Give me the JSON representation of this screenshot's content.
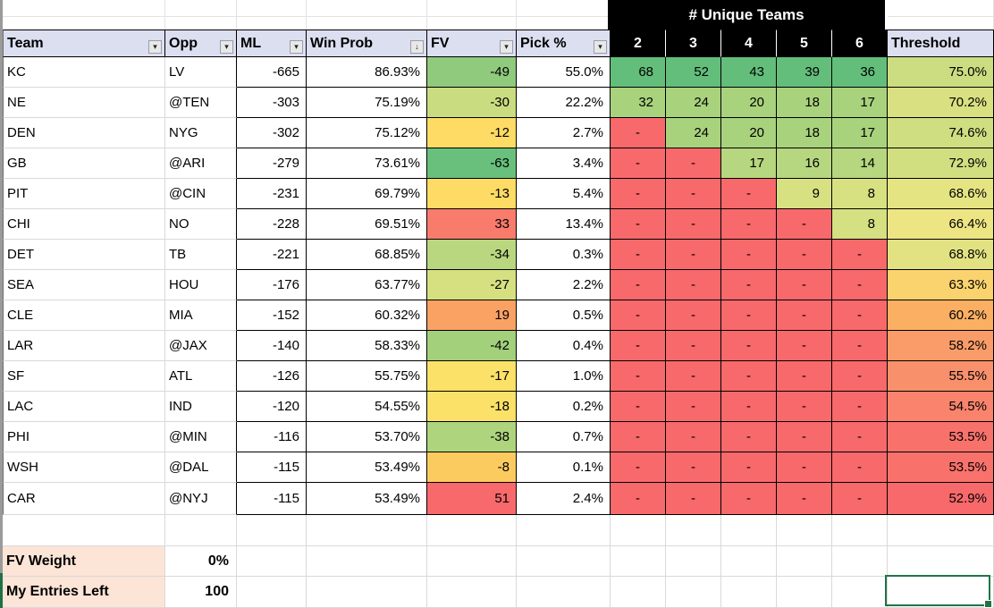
{
  "header": {
    "team": "Team",
    "opp": "Opp",
    "ml": "ML",
    "win_prob": "Win Prob",
    "fv": "FV",
    "pick_pct": "Pick %",
    "unique_teams_title": "# Unique Teams",
    "unique_cols": [
      "2",
      "3",
      "4",
      "5",
      "6"
    ],
    "threshold": "Threshold"
  },
  "icons": {
    "dropdown": "▾",
    "sort_desc": "↓"
  },
  "colors": {
    "header_fill": "#dbdff0",
    "black_header_bg": "#000000",
    "dash_red": "#F8696B",
    "label_fill": "#fce4d6",
    "selection_green": "#217346",
    "gridline": "#d9d9d9"
  },
  "rows": [
    {
      "team": "KC",
      "opp": "LV",
      "ml": "-665",
      "win_prob": "86.93%",
      "fv": "-49",
      "fv_color": "#8FCA7D",
      "pick": "55.0%",
      "unique": [
        "68",
        "52",
        "43",
        "39",
        "36"
      ],
      "unique_colors": [
        "#63BE7B",
        "#63BE7B",
        "#63BE7B",
        "#63BE7B",
        "#63BE7B"
      ],
      "threshold": "75.0%",
      "threshold_color": "#CBDD80"
    },
    {
      "team": "NE",
      "opp": "@TEN",
      "ml": "-303",
      "win_prob": "75.19%",
      "fv": "-30",
      "fv_color": "#C9DC80",
      "pick": "22.2%",
      "unique": [
        "32",
        "24",
        "20",
        "18",
        "17"
      ],
      "unique_colors": [
        "#A9D27D",
        "#A9D27D",
        "#A9D27D",
        "#A9D27D",
        "#A9D27D"
      ],
      "threshold": "70.2%",
      "threshold_color": "#D8E081"
    },
    {
      "team": "DEN",
      "opp": "NYG",
      "ml": "-302",
      "win_prob": "75.12%",
      "fv": "-12",
      "fv_color": "#FDDB64",
      "pick": "2.7%",
      "unique": [
        "-",
        "24",
        "20",
        "18",
        "17"
      ],
      "unique_colors": [
        "#F8696B",
        "#A9D27D",
        "#A9D27D",
        "#A9D27D",
        "#A9D27D"
      ],
      "threshold": "74.6%",
      "threshold_color": "#CEDE80"
    },
    {
      "team": "GB",
      "opp": "@ARI",
      "ml": "-279",
      "win_prob": "73.61%",
      "fv": "-63",
      "fv_color": "#68C07C",
      "pick": "3.4%",
      "unique": [
        "-",
        "-",
        "17",
        "16",
        "14"
      ],
      "unique_colors": [
        "#F8696B",
        "#F8696B",
        "#B6D67F",
        "#B6D67F",
        "#B6D67F"
      ],
      "threshold": "72.9%",
      "threshold_color": "#D2DF80"
    },
    {
      "team": "PIT",
      "opp": "@CIN",
      "ml": "-231",
      "win_prob": "69.79%",
      "fv": "-13",
      "fv_color": "#FDDB64",
      "pick": "5.4%",
      "unique": [
        "-",
        "-",
        "-",
        "9",
        "8"
      ],
      "unique_colors": [
        "#F8696B",
        "#F8696B",
        "#F8696B",
        "#D8E182",
        "#D8E182"
      ],
      "threshold": "68.6%",
      "threshold_color": "#E5E483"
    },
    {
      "team": "CHI",
      "opp": "NO",
      "ml": "-228",
      "win_prob": "69.51%",
      "fv": "33",
      "fv_color": "#F87B6C",
      "pick": "13.4%",
      "unique": [
        "-",
        "-",
        "-",
        "-",
        "8"
      ],
      "unique_colors": [
        "#F8696B",
        "#F8696B",
        "#F8696B",
        "#F8696B",
        "#D4E081"
      ],
      "threshold": "66.4%",
      "threshold_color": "#EDE583"
    },
    {
      "team": "DET",
      "opp": "TB",
      "ml": "-221",
      "win_prob": "68.85%",
      "fv": "-34",
      "fv_color": "#B9D77F",
      "pick": "0.3%",
      "unique": [
        "-",
        "-",
        "-",
        "-",
        "-"
      ],
      "unique_colors": [
        "#F8696B",
        "#F8696B",
        "#F8696B",
        "#F8696B",
        "#F8696B"
      ],
      "threshold": "68.8%",
      "threshold_color": "#E2E283"
    },
    {
      "team": "SEA",
      "opp": "HOU",
      "ml": "-176",
      "win_prob": "63.77%",
      "fv": "-27",
      "fv_color": "#D6E081",
      "pick": "2.2%",
      "unique": [
        "-",
        "-",
        "-",
        "-",
        "-"
      ],
      "unique_colors": [
        "#F8696B",
        "#F8696B",
        "#F8696B",
        "#F8696B",
        "#F8696B"
      ],
      "threshold": "63.3%",
      "threshold_color": "#FBD36E"
    },
    {
      "team": "CLE",
      "opp": "MIA",
      "ml": "-152",
      "win_prob": "60.32%",
      "fv": "19",
      "fv_color": "#FAA264",
      "pick": "0.5%",
      "unique": [
        "-",
        "-",
        "-",
        "-",
        "-"
      ],
      "unique_colors": [
        "#F8696B",
        "#F8696B",
        "#F8696B",
        "#F8696B",
        "#F8696B"
      ],
      "threshold": "60.2%",
      "threshold_color": "#FAAF63"
    },
    {
      "team": "LAR",
      "opp": "@JAX",
      "ml": "-140",
      "win_prob": "58.33%",
      "fv": "-42",
      "fv_color": "#A3D07B",
      "pick": "0.4%",
      "unique": [
        "-",
        "-",
        "-",
        "-",
        "-"
      ],
      "unique_colors": [
        "#F8696B",
        "#F8696B",
        "#F8696B",
        "#F8696B",
        "#F8696B"
      ],
      "threshold": "58.2%",
      "threshold_color": "#F99C69"
    },
    {
      "team": "SF",
      "opp": "ATL",
      "ml": "-126",
      "win_prob": "55.75%",
      "fv": "-17",
      "fv_color": "#FBE168",
      "pick": "1.0%",
      "unique": [
        "-",
        "-",
        "-",
        "-",
        "-"
      ],
      "unique_colors": [
        "#F8696B",
        "#F8696B",
        "#F8696B",
        "#F8696B",
        "#F8696B"
      ],
      "threshold": "55.5%",
      "threshold_color": "#F9906C"
    },
    {
      "team": "LAC",
      "opp": "IND",
      "ml": "-120",
      "win_prob": "54.55%",
      "fv": "-18",
      "fv_color": "#FBE168",
      "pick": "0.2%",
      "unique": [
        "-",
        "-",
        "-",
        "-",
        "-"
      ],
      "unique_colors": [
        "#F8696B",
        "#F8696B",
        "#F8696B",
        "#F8696B",
        "#F8696B"
      ],
      "threshold": "54.5%",
      "threshold_color": "#F9836C"
    },
    {
      "team": "PHI",
      "opp": "@MIN",
      "ml": "-116",
      "win_prob": "53.70%",
      "fv": "-38",
      "fv_color": "#AED47D",
      "pick": "0.7%",
      "unique": [
        "-",
        "-",
        "-",
        "-",
        "-"
      ],
      "unique_colors": [
        "#F8696B",
        "#F8696B",
        "#F8696B",
        "#F8696B",
        "#F8696B"
      ],
      "threshold": "53.5%",
      "threshold_color": "#F8726B"
    },
    {
      "team": "WSH",
      "opp": "@DAL",
      "ml": "-115",
      "win_prob": "53.49%",
      "fv": "-8",
      "fv_color": "#FCCB60",
      "pick": "0.1%",
      "unique": [
        "-",
        "-",
        "-",
        "-",
        "-"
      ],
      "unique_colors": [
        "#F8696B",
        "#F8696B",
        "#F8696B",
        "#F8696B",
        "#F8696B"
      ],
      "threshold": "53.5%",
      "threshold_color": "#F8726B"
    },
    {
      "team": "CAR",
      "opp": "@NYJ",
      "ml": "-115",
      "win_prob": "53.49%",
      "fv": "51",
      "fv_color": "#F8696B",
      "pick": "2.4%",
      "unique": [
        "-",
        "-",
        "-",
        "-",
        "-"
      ],
      "unique_colors": [
        "#F8696B",
        "#F8696B",
        "#F8696B",
        "#F8696B",
        "#F8696B"
      ],
      "threshold": "52.9%",
      "threshold_color": "#F8696B"
    }
  ],
  "footer": {
    "fv_weight_label": "FV Weight",
    "fv_weight_value": "0%",
    "entries_label": "My Entries Left",
    "entries_value": "100"
  }
}
